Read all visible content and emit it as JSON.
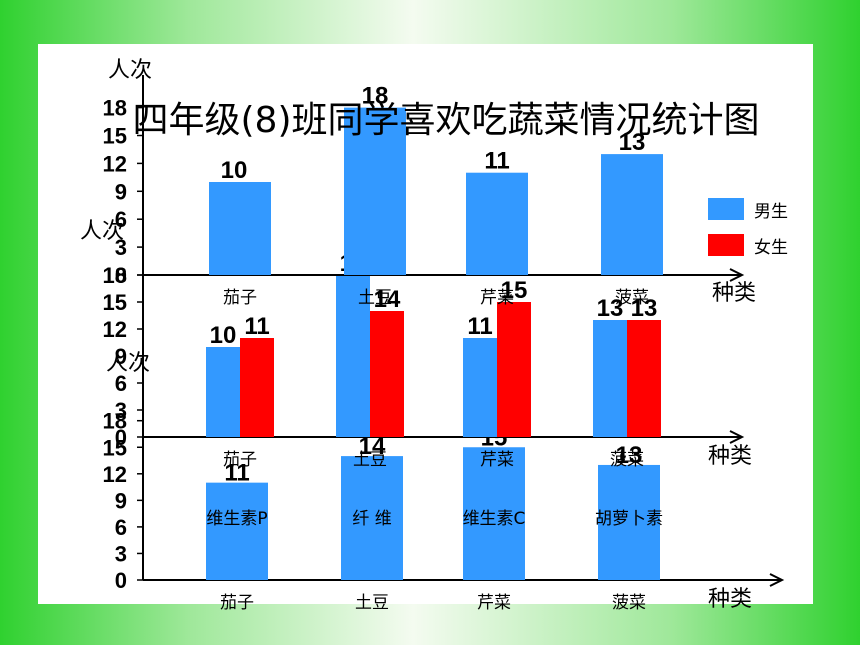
{
  "colors": {
    "boys": "#3399ff",
    "girls": "#ff0000",
    "axis": "#000000"
  },
  "chart_data": [
    {
      "type": "bar",
      "title": "四年级(8)班同学喜欢吃蔬菜情况统计图",
      "ylabel": "人次",
      "xlabel": "种类",
      "categories": [
        "茄子",
        "土豆",
        "芹菜",
        "菠菜"
      ],
      "series": [
        {
          "name": "男生",
          "values": [
            10,
            18,
            11,
            13
          ]
        }
      ],
      "y_ticks": [
        0,
        3,
        6,
        9,
        12,
        15,
        18
      ],
      "ylim": [
        0,
        18
      ],
      "legend": {
        "position": "right",
        "items": [
          "男生",
          "女生"
        ]
      }
    },
    {
      "type": "bar",
      "ylabel": "人次",
      "xlabel": "种类",
      "categories": [
        "茄子",
        "土豆",
        "芹菜",
        "菠菜"
      ],
      "series": [
        {
          "name": "男生",
          "values": [
            10,
            18,
            11,
            13
          ]
        },
        {
          "name": "女生",
          "values": [
            11,
            14,
            15,
            13
          ]
        }
      ],
      "y_ticks": [
        0,
        3,
        6,
        9,
        12,
        15,
        18
      ],
      "ylim": [
        0,
        18
      ]
    },
    {
      "type": "bar",
      "ylabel": "人次",
      "xlabel": "种类",
      "categories": [
        "茄子",
        "土豆",
        "芹菜",
        "菠菜"
      ],
      "series": [
        {
          "values": [
            11,
            14,
            15,
            13
          ]
        }
      ],
      "bar_annotations": [
        "维生素P",
        "纤 维",
        "维生素C",
        "胡萝卜素"
      ],
      "y_ticks": [
        0,
        3,
        6,
        9,
        12,
        15,
        18
      ],
      "ylim": [
        0,
        18
      ]
    }
  ]
}
